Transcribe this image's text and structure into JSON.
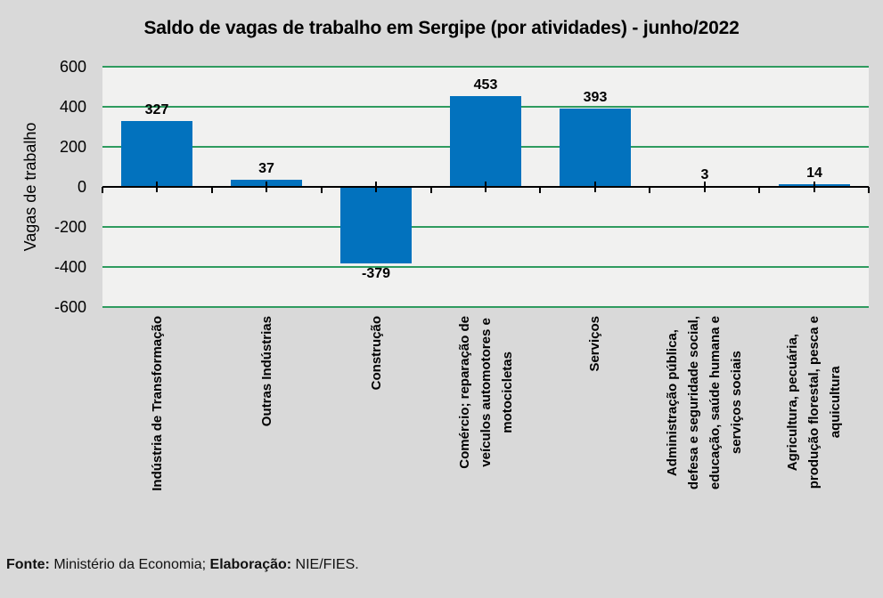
{
  "footer": {
    "fonte_label": "Fonte:",
    "fonte_text": " Ministério da Economia; ",
    "elaboracao_label": "Elaboração:",
    "elaboracao_text": " NIE/FIES."
  },
  "colors": {
    "bar": "#0272be",
    "grid": "#2f9b5f",
    "axis": "#000000",
    "page_bg": "#d9d9d9",
    "plot_bg": "#f1f1f0"
  },
  "chart_data": {
    "type": "bar",
    "title": "Saldo de vagas de trabalho em Sergipe (por atividades) - junho/2022",
    "xlabel": "",
    "ylabel": "Vagas de trabalho",
    "ylim": [
      -600,
      600
    ],
    "yticks": [
      600,
      400,
      200,
      0,
      -200,
      -400,
      -600
    ],
    "grid": true,
    "legend": false,
    "categories": [
      "Indústria de Transformação",
      "Outras Indústrias",
      "Construção",
      "Comércio; reparação de veículos automotores e motocicletas",
      "Serviços",
      "Administração pública, defesa e seguridade social, educação, saúde humana e serviços sociais",
      "Agricultura, pecuária, produção florestal, pesca e aquicultura"
    ],
    "categories_wrapped": [
      [
        "Indústria de Transformação"
      ],
      [
        "Outras Indústrias"
      ],
      [
        "Construção"
      ],
      [
        "Comércio; reparação de",
        "veículos automotores e",
        "motocicletas"
      ],
      [
        "Serviços"
      ],
      [
        "Administração pública,",
        "defesa e seguridade social,",
        "educação, saúde humana e",
        "serviços sociais"
      ],
      [
        "Agricultura, pecuária,",
        "produção florestal, pesca e",
        "aquicultura"
      ]
    ],
    "values": [
      327,
      37,
      -379,
      453,
      393,
      3,
      14
    ]
  }
}
